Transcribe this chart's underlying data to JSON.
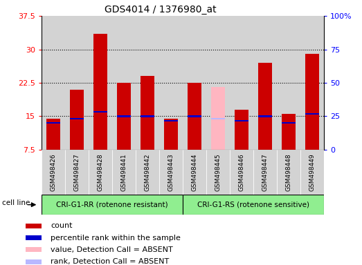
{
  "title": "GDS4014 / 1376980_at",
  "samples": [
    "GSM498426",
    "GSM498427",
    "GSM498428",
    "GSM498441",
    "GSM498442",
    "GSM498443",
    "GSM498444",
    "GSM498445",
    "GSM498446",
    "GSM498447",
    "GSM498448",
    "GSM498449"
  ],
  "count_values": [
    14.5,
    21.0,
    33.5,
    22.5,
    24.0,
    14.5,
    22.5,
    null,
    16.5,
    27.0,
    15.5,
    29.0
  ],
  "absent_value": 21.5,
  "absent_index": 7,
  "percentile_values": [
    13.5,
    14.5,
    16.0,
    15.0,
    15.0,
    14.0,
    15.0,
    null,
    14.0,
    15.0,
    13.5,
    15.5
  ],
  "absent_percentile": 14.5,
  "y_min": 7.5,
  "y_max": 37.5,
  "y_ticks": [
    7.5,
    15.0,
    22.5,
    30.0,
    37.5
  ],
  "y2_labels": [
    "0",
    "25",
    "50",
    "75",
    "100%"
  ],
  "group1_label": "CRI-G1-RR (rotenone resistant)",
  "group2_label": "CRI-G1-RS (rotenone sensitive)",
  "group1_count": 6,
  "group2_count": 6,
  "bar_color": "#cc0000",
  "absent_bar_color": "#ffb6c1",
  "percentile_color": "#0000cc",
  "absent_percentile_color": "#b8b8ff",
  "bg_color": "#d3d3d3",
  "group_bg": "#90ee90",
  "bar_width": 0.6,
  "legend_items": [
    {
      "label": "count",
      "color": "#cc0000"
    },
    {
      "label": "percentile rank within the sample",
      "color": "#0000cc"
    },
    {
      "label": "value, Detection Call = ABSENT",
      "color": "#ffb6c1"
    },
    {
      "label": "rank, Detection Call = ABSENT",
      "color": "#b8b8ff"
    }
  ]
}
